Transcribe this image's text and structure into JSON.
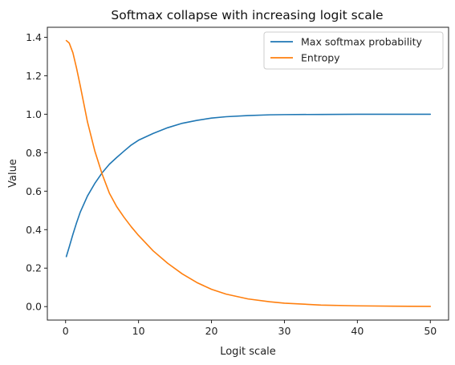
{
  "chart_data": {
    "type": "line",
    "title": "Softmax collapse with increasing logit scale",
    "xlabel": "Logit scale",
    "ylabel": "Value",
    "xlim": [
      -2.5,
      52.5
    ],
    "ylim": [
      -0.07,
      1.452
    ],
    "xticks": [
      0,
      10,
      20,
      30,
      40,
      50
    ],
    "yticks": [
      0.0,
      0.2,
      0.4,
      0.6,
      0.8,
      1.0,
      1.2,
      1.4
    ],
    "grid": false,
    "legend_position": "top-right",
    "series": [
      {
        "name": "Max softmax probability",
        "color": "#1f77b4",
        "x": [
          0.1,
          0.5,
          1,
          1.5,
          2,
          3,
          4,
          5,
          6,
          7,
          8,
          9,
          10,
          12,
          14,
          16,
          18,
          20,
          22,
          25,
          28,
          30,
          35,
          40,
          45,
          50
        ],
        "y": [
          0.26,
          0.31,
          0.375,
          0.435,
          0.49,
          0.575,
          0.64,
          0.695,
          0.74,
          0.775,
          0.808,
          0.84,
          0.865,
          0.9,
          0.93,
          0.953,
          0.968,
          0.98,
          0.987,
          0.993,
          0.997,
          0.998,
          0.999,
          1.0,
          1.0,
          1.0
        ]
      },
      {
        "name": "Entropy",
        "color": "#ff7f0e",
        "x": [
          0.1,
          0.5,
          1,
          1.5,
          2,
          3,
          4,
          5,
          6,
          7,
          8,
          9,
          10,
          12,
          14,
          16,
          18,
          20,
          22,
          25,
          28,
          30,
          35,
          40,
          45,
          50
        ],
        "y": [
          1.383,
          1.37,
          1.32,
          1.24,
          1.15,
          0.96,
          0.81,
          0.69,
          0.59,
          0.52,
          0.465,
          0.415,
          0.37,
          0.29,
          0.225,
          0.17,
          0.125,
          0.09,
          0.065,
          0.04,
          0.025,
          0.018,
          0.008,
          0.004,
          0.002,
          0.001
        ]
      }
    ]
  }
}
